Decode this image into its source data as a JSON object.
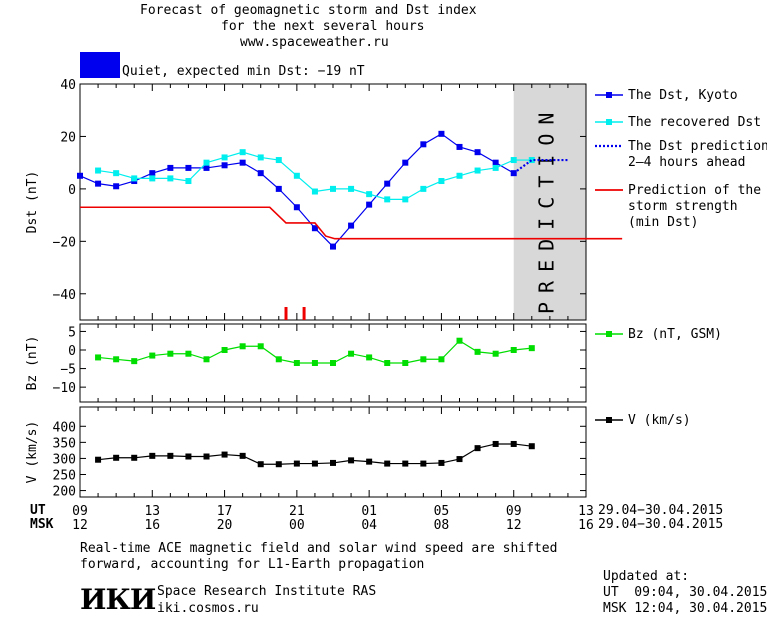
{
  "header": {
    "title_line1": "Forecast of geomagnetic storm and Dst index",
    "title_line2": "for the next several hours",
    "title_line3": "www.spaceweather.ru",
    "status_text": "Quiet, expected min Dst: −19 nT",
    "status_color": "#0000ee"
  },
  "chart_data": [
    {
      "type": "line",
      "ylabel": "Dst (nT)",
      "ylim": [
        -50,
        40
      ],
      "yticks": [
        "40",
        "20",
        "0",
        "−20",
        "−40"
      ],
      "x_axis_hours_ut": [
        9,
        13
      ],
      "prediction_band_label": "PREDICTION",
      "legend_placement": "right",
      "series": [
        {
          "name": "The Dst, Kyoto",
          "color": "#0000ee",
          "marker": "square",
          "x": [
            9,
            10,
            11,
            12,
            13,
            14,
            15,
            16,
            17,
            18,
            19,
            20,
            21,
            22,
            23,
            24,
            25,
            26,
            27,
            28,
            29,
            30,
            31,
            32,
            33
          ],
          "values": [
            5,
            2,
            1,
            3,
            6,
            8,
            8,
            8,
            9,
            10,
            6,
            0,
            -7,
            -15,
            -22,
            -14,
            -6,
            2,
            10,
            17,
            21,
            16,
            14,
            10,
            6
          ]
        },
        {
          "name": "The recovered Dst",
          "color": "#00eeee",
          "marker": "square",
          "x": [
            10,
            11,
            12,
            13,
            14,
            15,
            16,
            17,
            18,
            19,
            20,
            21,
            22,
            23,
            24,
            25,
            26,
            27,
            28,
            29,
            30,
            31,
            32,
            33,
            34
          ],
          "values": [
            7,
            6,
            4,
            4,
            4,
            3,
            10,
            12,
            14,
            12,
            11,
            5,
            -1,
            0,
            0,
            -2,
            -4,
            -4,
            0,
            3,
            5,
            7,
            8,
            11,
            11
          ]
        },
        {
          "name": "The Dst prediction\n2–4 hours ahead",
          "color": "#0000ee",
          "style": "dotted",
          "x": [
            33,
            34,
            35,
            36
          ],
          "values": [
            6,
            11,
            11,
            11
          ]
        },
        {
          "name": "Prediction of the\nstorm strength\n(min Dst)",
          "color": "#ee0000",
          "style": "step",
          "x": [
            9,
            19.5,
            20.4,
            22,
            22.6,
            23.1,
            39
          ],
          "values": [
            -7,
            -7,
            -13,
            -13,
            -18,
            -19,
            -19
          ]
        }
      ],
      "storm_marks_x": [
        20.4,
        21.4
      ]
    },
    {
      "type": "line",
      "ylabel": "Bz (nT)",
      "ylim": [
        -14,
        7
      ],
      "yticks": [
        "5",
        "0",
        "−5",
        "−10"
      ],
      "series": [
        {
          "name": "Bz (nT, GSM)",
          "color": "#00dd00",
          "marker": "square",
          "x": [
            10,
            11,
            12,
            13,
            14,
            15,
            16,
            17,
            18,
            19,
            20,
            21,
            22,
            23,
            24,
            25,
            26,
            27,
            28,
            29,
            30,
            31,
            32,
            33,
            34
          ],
          "values": [
            -2,
            -2.5,
            -3,
            -1.5,
            -1,
            -1,
            -2.5,
            0,
            1,
            1,
            -2.5,
            -3.5,
            -3.5,
            -3.5,
            -1,
            -2,
            -3.5,
            -3.5,
            -2.5,
            -2.5,
            2.5,
            -0.5,
            -1,
            0,
            0.5
          ]
        }
      ]
    },
    {
      "type": "line",
      "ylabel": "V (km/s)",
      "ylim": [
        180,
        460
      ],
      "yticks": [
        "400",
        "350",
        "300",
        "250",
        "200"
      ],
      "series": [
        {
          "name": "V (km/s)",
          "color": "#000000",
          "marker": "square",
          "x": [
            10,
            11,
            12,
            13,
            14,
            15,
            16,
            17,
            18,
            19,
            20,
            21,
            22,
            23,
            24,
            25,
            26,
            27,
            28,
            29,
            30,
            31,
            32,
            33,
            34
          ],
          "values": [
            296,
            302,
            302,
            308,
            308,
            306,
            306,
            312,
            308,
            282,
            282,
            284,
            284,
            286,
            294,
            290,
            284,
            284,
            284,
            286,
            298,
            332,
            345,
            345,
            338
          ]
        }
      ]
    }
  ],
  "time_axis": {
    "ut_label": "UT",
    "msk_label": "MSK",
    "ut_ticks": [
      "09",
      "13",
      "17",
      "21",
      "01",
      "05",
      "09",
      "13"
    ],
    "msk_ticks": [
      "12",
      "16",
      "20",
      "00",
      "04",
      "08",
      "12",
      "16"
    ],
    "ut_range": "29.04−30.04.2015",
    "msk_range": "29.04−30.04.2015"
  },
  "footer": {
    "note_line1": "Real-time ACE magnetic field and solar wind speed are shifted",
    "note_line2": "forward, accounting for L1-Earth propagation",
    "institute": "Space Research Institute RAS",
    "site": "iki.cosmos.ru",
    "logo_text": "ИКИ",
    "updated_label": "Updated at:",
    "updated_ut": "UT  09:04, 30.04.2015",
    "updated_msk": "MSK 12:04, 30.04.2015"
  }
}
